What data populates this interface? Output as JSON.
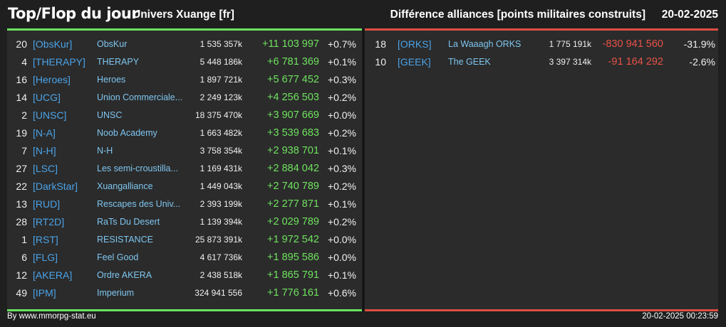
{
  "header": {
    "title": "Top/Flop du jour",
    "universe": "Univers Xuange [fr]",
    "metric": "Différence alliances [points militaires construits]",
    "date": "20-02-2025"
  },
  "colors": {
    "top_accent": "#69e35f",
    "flop_accent": "#dd4e44",
    "tag": "#4aa3e8",
    "name": "#7ec6f0",
    "background": "#1f1f1f",
    "panel": "#2b2b2b"
  },
  "top": [
    {
      "rank": "20",
      "tag": "[ObsKur]",
      "name": "ObsKur",
      "points": "1 535 357k",
      "diff": "+11 103 997",
      "pct": "+0.7%"
    },
    {
      "rank": "4",
      "tag": "[THERAPY]",
      "name": "THERAPY",
      "points": "5 448 186k",
      "diff": "+6 781 369",
      "pct": "+0.1%"
    },
    {
      "rank": "16",
      "tag": "[Heroes]",
      "name": "Heroes",
      "points": "1 897 721k",
      "diff": "+5 677 452",
      "pct": "+0.3%"
    },
    {
      "rank": "14",
      "tag": "[UCG]",
      "name": "Union Commerciale...",
      "points": "2 249 123k",
      "diff": "+4 256 503",
      "pct": "+0.2%"
    },
    {
      "rank": "2",
      "tag": "[UNSC]",
      "name": "UNSC",
      "points": "18 375 470k",
      "diff": "+3 907 669",
      "pct": "+0.0%"
    },
    {
      "rank": "19",
      "tag": "[N-A]",
      "name": "Noob Academy",
      "points": "1 663 482k",
      "diff": "+3 539 683",
      "pct": "+0.2%"
    },
    {
      "rank": "7",
      "tag": "[N-H]",
      "name": "N-H",
      "points": "3 758 354k",
      "diff": "+2 938 701",
      "pct": "+0.1%"
    },
    {
      "rank": "27",
      "tag": "[LSC]",
      "name": "Les semi-croustilla...",
      "points": "1 169 431k",
      "diff": "+2 884 042",
      "pct": "+0.3%"
    },
    {
      "rank": "22",
      "tag": "[DarkStar]",
      "name": "Xuangalliance",
      "points": "1 449 043k",
      "diff": "+2 740 789",
      "pct": "+0.2%"
    },
    {
      "rank": "13",
      "tag": "[RUD]",
      "name": "Rescapes des Univ...",
      "points": "2 393 199k",
      "diff": "+2 277 871",
      "pct": "+0.1%"
    },
    {
      "rank": "28",
      "tag": "[RT2D]",
      "name": "RaTs Du Desert",
      "points": "1 139 394k",
      "diff": "+2 029 789",
      "pct": "+0.2%"
    },
    {
      "rank": "1",
      "tag": "[RST]",
      "name": "RESISTANCE",
      "points": "25 873 391k",
      "diff": "+1 972 542",
      "pct": "+0.0%"
    },
    {
      "rank": "6",
      "tag": "[FLG]",
      "name": "Feel Good",
      "points": "4 617 736k",
      "diff": "+1 895 586",
      "pct": "+0.0%"
    },
    {
      "rank": "12",
      "tag": "[AKERA]",
      "name": "Ordre AKERA",
      "points": "2 438 518k",
      "diff": "+1 865 791",
      "pct": "+0.1%"
    },
    {
      "rank": "49",
      "tag": "[IPM]",
      "name": "Imperium",
      "points": "324 941 556",
      "diff": "+1 776 161",
      "pct": "+0.6%"
    }
  ],
  "flop": [
    {
      "rank": "18",
      "tag": "[ORKS]",
      "name": "La Waaagh ORKS",
      "points": "1 775 191k",
      "diff": "-830 941 560",
      "pct": "-31.9%"
    },
    {
      "rank": "10",
      "tag": "[GEEK]",
      "name": "The GEEK",
      "points": "3 397 314k",
      "diff": "-91 164 292",
      "pct": "-2.6%"
    }
  ],
  "footer": {
    "source": "By www.mmorpg-stat.eu",
    "timestamp": "20-02-2025 00:23:59"
  }
}
